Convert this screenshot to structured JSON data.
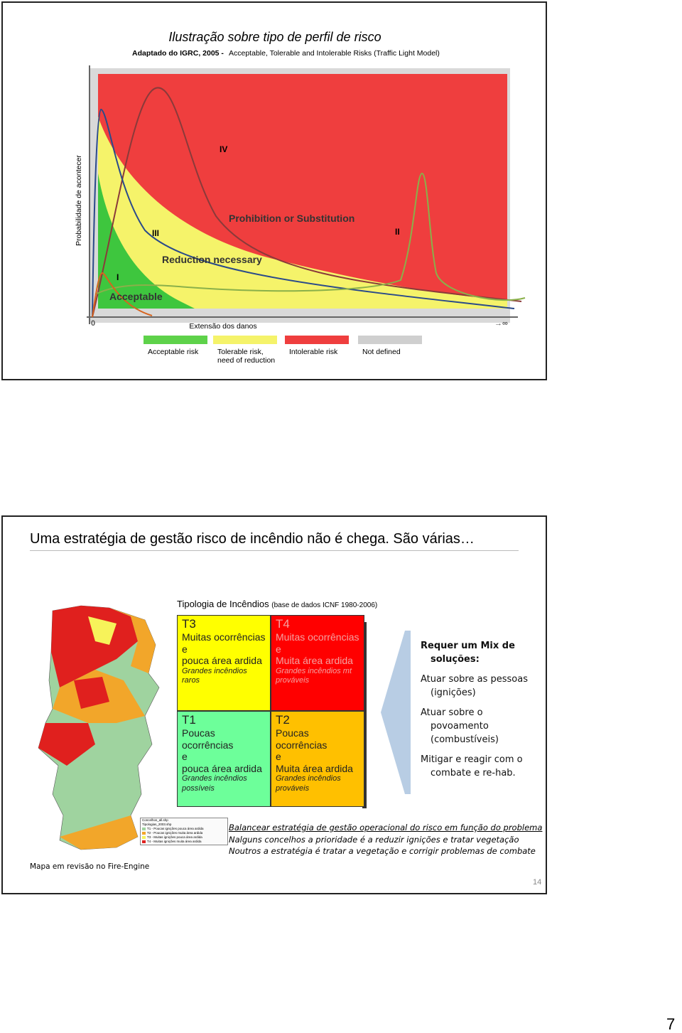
{
  "page_number": "7",
  "slide1": {
    "title": "Ilustração sobre tipo de perfil de risco",
    "subtitle_source": "Adaptado do IGRC, 2005 -",
    "subtitle_model": "Acceptable, Tolerable and Intolerable Risks (Traffic Light Model)",
    "y_axis_label": "Probabilidade de acontecer",
    "x_axis_label": "Extensão dos danos",
    "origin": "0",
    "infinity": "→∞",
    "zones": [
      "Prohibition or Substitution",
      "Reduction necessary",
      "Acceptable"
    ],
    "curves": [
      "IV",
      "III",
      "II",
      "I"
    ],
    "legend": [
      {
        "lines": [
          "Acceptable risk"
        ]
      },
      {
        "lines": [
          "Tolerable risk,",
          "need of reduction"
        ]
      },
      {
        "lines": [
          "Intolerable risk"
        ]
      },
      {
        "lines": [
          "Not defined"
        ]
      }
    ]
  },
  "slide2": {
    "title": "Uma estratégia de gestão risco de incêndio não é chega. São várias…",
    "table_title": "Tipologia de Incêndios",
    "table_source": "(base de dados ICNF 1980-2006)",
    "cells": [
      {
        "code": "T3",
        "lines": [
          "Muitas ocorrências",
          "e",
          "pouca área ardida"
        ],
        "note": [
          "Grandes incêndios raros"
        ]
      },
      {
        "code": "T4",
        "lines": [
          "Muitas ocorrências",
          "e",
          "Muita área ardida"
        ],
        "note": [
          "Grandes incêndios mt",
          "prováveis"
        ]
      },
      {
        "code": "T1",
        "lines": [
          "Poucas",
          "ocorrências",
          "e",
          "pouca área ardida"
        ],
        "note": [
          "Grandes incêndios",
          "possíveis"
        ]
      },
      {
        "code": "T2",
        "lines": [
          "Poucas",
          "ocorrências",
          "e",
          "Muita área ardida"
        ],
        "note": [
          "Grandes incêndios",
          "prováveis"
        ]
      }
    ],
    "solutions": {
      "heading": [
        "Requer um Mix de",
        "soluções:"
      ],
      "items": [
        [
          "Atuar sobre as pessoas",
          "(ignições)"
        ],
        [
          "Atuar sobre o",
          "povoamento",
          "(combustíveis)"
        ],
        [
          "Mitigar e reagir com o",
          "combate e re-hab."
        ]
      ]
    },
    "map_legend": [
      "Concelhos_all.shp",
      "Tipologias_2003.shp",
      "T1 - Poucas ignições pouca área ardida",
      "T2 - Poucas ignições muita área ardida",
      "T3 - Muitas ignições pouca área ardida",
      "T4 - Muitas ignições muita área ardida"
    ],
    "footer_lines": [
      "Balancear estratégia de gestão operacional do risco em função do problema",
      "Nalguns concelhos a prioridade é a reduzir ignições e tratar vegetação",
      "Noutros a estratégia é tratar a vegetação e corrigir problemas de combate"
    ],
    "map_caption": "Mapa em revisão no Fire-Engine",
    "slide_number": "14"
  }
}
